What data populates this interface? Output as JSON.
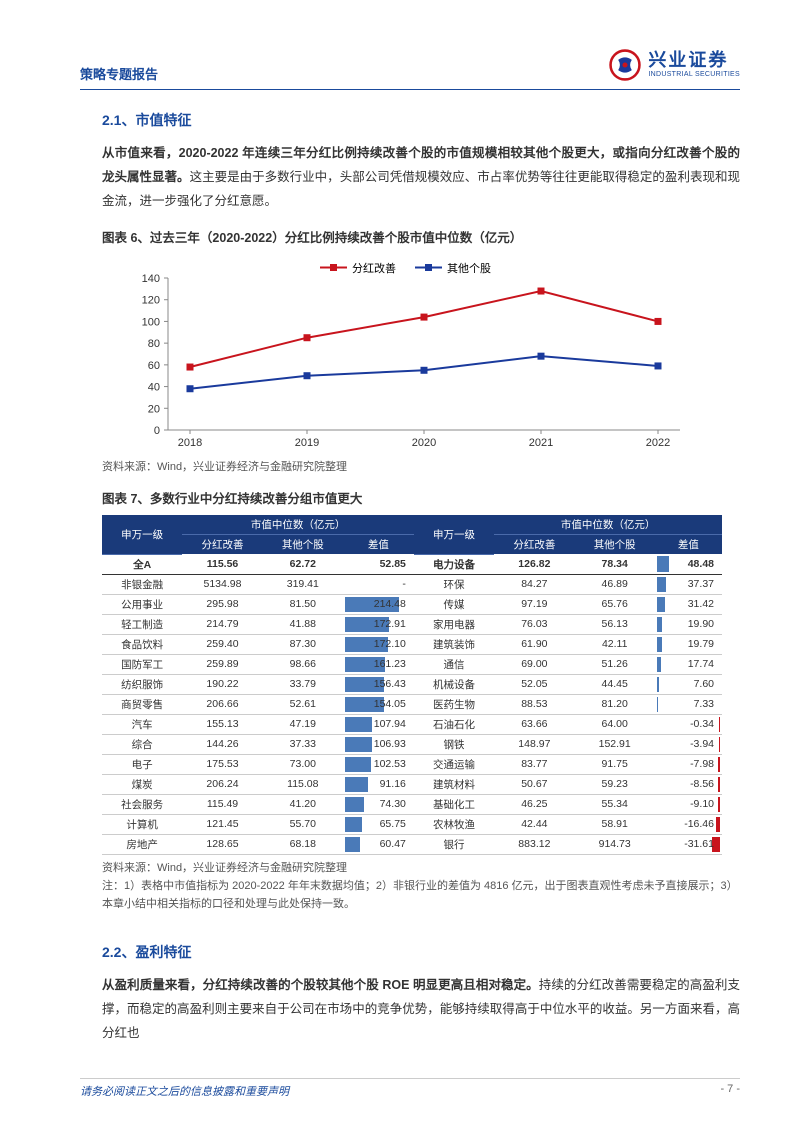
{
  "header": {
    "left": "策略专题报告",
    "logo_cn": "兴业证券",
    "logo_en": "INDUSTRIAL SECURITIES"
  },
  "sec21": {
    "title": "2.1、市值特征",
    "p1_bold": "从市值来看，2020-2022 年连续三年分红比例持续改善个股的市值规模相较其他个股更大，或指向分红改善个股的龙头属性显著。",
    "p1_rest": "这主要是由于多数行业中，头部公司凭借规模效应、市占率优势等往往更能取得稳定的盈利表现和现金流，进一步强化了分红意愿。"
  },
  "fig6": {
    "title": "图表 6、过去三年（2020-2022）分红比例持续改善个股市值中位数（亿元）",
    "legend": [
      "分红改善",
      "其他个股"
    ],
    "years": [
      "2018",
      "2019",
      "2020",
      "2021",
      "2022"
    ],
    "series_improve": {
      "color": "#c8141d",
      "values": [
        58,
        85,
        104,
        128,
        100
      ],
      "marker": "square"
    },
    "series_other": {
      "color": "#1a3a9c",
      "values": [
        38,
        50,
        55,
        68,
        59
      ],
      "marker": "square"
    },
    "ylim": [
      0,
      140
    ],
    "ytick_step": 20,
    "axis_color": "#888",
    "bg": "#ffffff",
    "label_fontsize": 11
  },
  "src6": "资料来源：Wind，兴业证券经济与金融研究院整理",
  "fig7": {
    "title": "图表 7、多数行业中分红持续改善分组市值更大",
    "header_top": [
      "申万一级",
      "市值中位数（亿元）",
      "申万一级",
      "市值中位数（亿元）"
    ],
    "header_sub": [
      "分红改善",
      "其他个股",
      "差值",
      "分红改善",
      "其他个股",
      "差值"
    ],
    "bar_pos_color": "#4a7ab8",
    "bar_neg_color": "#c8141d",
    "left": [
      {
        "n": "全A",
        "a": "115.56",
        "b": "62.72",
        "d": "52.85",
        "total": true
      },
      {
        "n": "非银金融",
        "a": "5134.98",
        "b": "319.41",
        "d": "-"
      },
      {
        "n": "公用事业",
        "a": "295.98",
        "b": "81.50",
        "d": "214.48",
        "bar": 100
      },
      {
        "n": "轻工制造",
        "a": "214.79",
        "b": "41.88",
        "d": "172.91",
        "bar": 81
      },
      {
        "n": "食品饮料",
        "a": "259.40",
        "b": "87.30",
        "d": "172.10",
        "bar": 80
      },
      {
        "n": "国防军工",
        "a": "259.89",
        "b": "98.66",
        "d": "161.23",
        "bar": 75
      },
      {
        "n": "纺织服饰",
        "a": "190.22",
        "b": "33.79",
        "d": "156.43",
        "bar": 73
      },
      {
        "n": "商贸零售",
        "a": "206.66",
        "b": "52.61",
        "d": "154.05",
        "bar": 72
      },
      {
        "n": "汽车",
        "a": "155.13",
        "b": "47.19",
        "d": "107.94",
        "bar": 50
      },
      {
        "n": "综合",
        "a": "144.26",
        "b": "37.33",
        "d": "106.93",
        "bar": 50
      },
      {
        "n": "电子",
        "a": "175.53",
        "b": "73.00",
        "d": "102.53",
        "bar": 48
      },
      {
        "n": "煤炭",
        "a": "206.24",
        "b": "115.08",
        "d": "91.16",
        "bar": 42
      },
      {
        "n": "社会服务",
        "a": "115.49",
        "b": "41.20",
        "d": "74.30",
        "bar": 35
      },
      {
        "n": "计算机",
        "a": "121.45",
        "b": "55.70",
        "d": "65.75",
        "bar": 31
      },
      {
        "n": "房地产",
        "a": "128.65",
        "b": "68.18",
        "d": "60.47",
        "bar": 28
      }
    ],
    "right": [
      {
        "n": "电力设备",
        "a": "126.82",
        "b": "78.34",
        "d": "48.48",
        "bar": 23
      },
      {
        "n": "环保",
        "a": "84.27",
        "b": "46.89",
        "d": "37.37",
        "bar": 17
      },
      {
        "n": "传媒",
        "a": "97.19",
        "b": "65.76",
        "d": "31.42",
        "bar": 15
      },
      {
        "n": "家用电器",
        "a": "76.03",
        "b": "56.13",
        "d": "19.90",
        "bar": 9
      },
      {
        "n": "建筑装饰",
        "a": "61.90",
        "b": "42.11",
        "d": "19.79",
        "bar": 9
      },
      {
        "n": "通信",
        "a": "69.00",
        "b": "51.26",
        "d": "17.74",
        "bar": 8
      },
      {
        "n": "机械设备",
        "a": "52.05",
        "b": "44.45",
        "d": "7.60",
        "bar": 4
      },
      {
        "n": "医药生物",
        "a": "88.53",
        "b": "81.20",
        "d": "7.33",
        "bar": 3
      },
      {
        "n": "石油石化",
        "a": "63.66",
        "b": "64.00",
        "d": "-0.34",
        "bar": -1
      },
      {
        "n": "钢铁",
        "a": "148.97",
        "b": "152.91",
        "d": "-3.94",
        "bar": -2
      },
      {
        "n": "交通运输",
        "a": "83.77",
        "b": "91.75",
        "d": "-7.98",
        "bar": -4
      },
      {
        "n": "建筑材料",
        "a": "50.67",
        "b": "59.23",
        "d": "-8.56",
        "bar": -4
      },
      {
        "n": "基础化工",
        "a": "46.25",
        "b": "55.34",
        "d": "-9.10",
        "bar": -4
      },
      {
        "n": "农林牧渔",
        "a": "42.44",
        "b": "58.91",
        "d": "-16.46",
        "bar": -8
      },
      {
        "n": "银行",
        "a": "883.12",
        "b": "914.73",
        "d": "-31.61",
        "bar": -15
      }
    ]
  },
  "src7": "资料来源：Wind，兴业证券经济与金融研究院整理",
  "note7": "注：1）表格中市值指标为 2020-2022 年年末数据均值；2）非银行业的差值为 4816 亿元，出于图表直观性考虑未予直接展示；3）本章小结中相关指标的口径和处理与此处保持一致。",
  "sec22": {
    "title": "2.2、盈利特征",
    "p1_bold": "从盈利质量来看，分红持续改善的个股较其他个股 ROE 明显更高且相对稳定。",
    "p1_rest": "持续的分红改善需要稳定的高盈利支撑，而稳定的高盈利则主要来自于公司在市场中的竞争优势，能够持续取得高于中位水平的收益。另一方面来看，高分红也"
  },
  "footer": {
    "disclaimer": "请务必阅读正文之后的信息披露和重要声明",
    "page": "- 7 -"
  }
}
